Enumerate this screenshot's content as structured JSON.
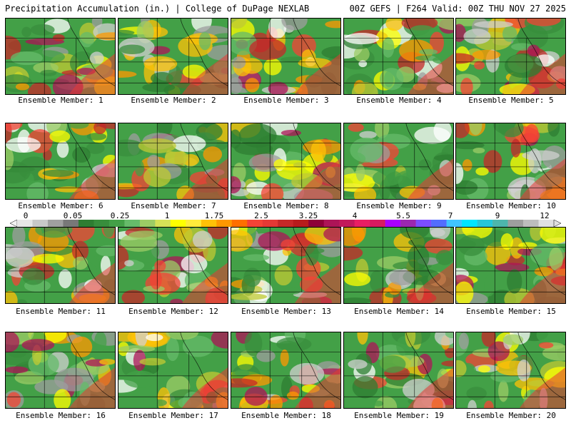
{
  "header": {
    "left": "Precipitation Accumulation (in.) | College of DuPage NEXLAB",
    "right": "00Z GEFS | F264 Valid: 00Z THU NOV 27 2025"
  },
  "colorbar": {
    "labels": [
      "0",
      "0.05",
      "0.25",
      "1",
      "1.75",
      "2.5",
      "3.25",
      "4",
      "5.5",
      "7",
      "9",
      "12"
    ],
    "colors": [
      "#e6e6e6",
      "#c8c8c8",
      "#a0a0a0",
      "#787878",
      "#2e7d32",
      "#388e3c",
      "#43a047",
      "#66bb6a",
      "#9ccc65",
      "#d4e157",
      "#ffff00",
      "#ffeb3b",
      "#ffc107",
      "#ff9800",
      "#ff6f00",
      "#f44336",
      "#e53935",
      "#c62828",
      "#b71c1c",
      "#8e0038",
      "#ad1457",
      "#c2185b",
      "#e91e63",
      "#d81b60",
      "#aa00ff",
      "#9c27b0",
      "#7c4dff",
      "#536dfe",
      "#40c4ff",
      "#00e5ff",
      "#26c6da",
      "#4db6ac",
      "#9e9e9e",
      "#bdbdbd",
      "#e0e0e0"
    ]
  },
  "panels": [
    {
      "label": "Ensemble Member: 1"
    },
    {
      "label": "Ensemble Member: 2"
    },
    {
      "label": "Ensemble Member: 3"
    },
    {
      "label": "Ensemble Member: 4"
    },
    {
      "label": "Ensemble Member: 5"
    },
    {
      "label": "Ensemble Member: 6"
    },
    {
      "label": "Ensemble Member: 7"
    },
    {
      "label": "Ensemble Member: 8"
    },
    {
      "label": "Ensemble Member: 9"
    },
    {
      "label": "Ensemble Member: 10"
    },
    {
      "label": "Ensemble Member: 11"
    },
    {
      "label": "Ensemble Member: 12"
    },
    {
      "label": "Ensemble Member: 13"
    },
    {
      "label": "Ensemble Member: 14"
    },
    {
      "label": "Ensemble Member: 15"
    },
    {
      "label": "Ensemble Member: 16"
    },
    {
      "label": "Ensemble Member: 17"
    },
    {
      "label": "Ensemble Member: 18"
    },
    {
      "label": "Ensemble Member: 19"
    },
    {
      "label": "Ensemble Member: 20"
    }
  ]
}
